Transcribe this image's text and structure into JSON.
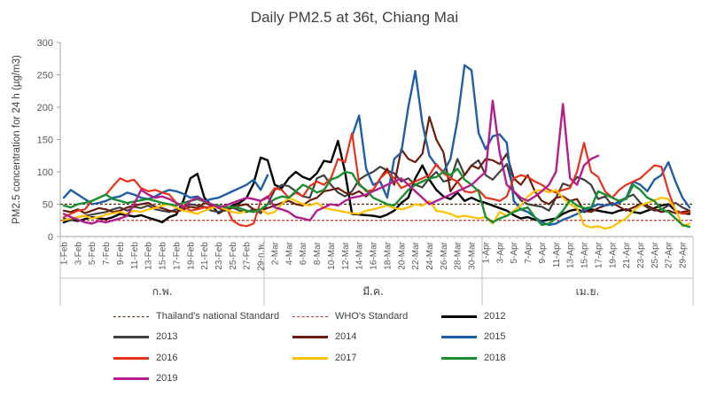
{
  "chart_data": {
    "type": "line",
    "title": "Daily PM2.5 at 36t, Chiang Mai",
    "ylabel": "PM2.5 concentration for 24 h (µg/m3)",
    "xlabel": "",
    "ylim": [
      0,
      300
    ],
    "yticks": [
      0,
      50,
      100,
      150,
      200,
      250,
      300
    ],
    "grid": false,
    "legend_position": "bottom",
    "month_groups": [
      {
        "label": "ก.พ.",
        "start": 0,
        "end": 28
      },
      {
        "label": "มี.ค.",
        "start": 29,
        "end": 59
      },
      {
        "label": "เม.ย.",
        "start": 60,
        "end": 89
      }
    ],
    "x_tick_labels": [
      "1-Feb",
      "3-Feb",
      "5-Feb",
      "7-Feb",
      "9-Feb",
      "11-Feb",
      "13-Feb",
      "15-Feb",
      "17-Feb",
      "19-Feb",
      "21-Feb",
      "23-Feb",
      "25-Feb",
      "27-Feb",
      "29-ก.พ.",
      "2-Mar",
      "4-Mar",
      "6-Mar",
      "8-Mar",
      "10-Mar",
      "12-Mar",
      "14-Mar",
      "16-Mar",
      "18-Mar",
      "20-Mar",
      "22-Mar",
      "24-Mar",
      "26-Mar",
      "28-Mar",
      "30-Mar",
      "1-Apr",
      "3-Apr",
      "5-Apr",
      "7-Apr",
      "9-Apr",
      "11-Apr",
      "13-Apr",
      "15-Apr",
      "17-Apr",
      "19-Apr",
      "21-Apr",
      "23-Apr",
      "25-Apr",
      "27-Apr",
      "29-Apr"
    ],
    "x_tick_days": [
      0,
      2,
      4,
      6,
      8,
      10,
      12,
      14,
      16,
      18,
      20,
      22,
      24,
      26,
      28,
      30,
      32,
      34,
      36,
      38,
      40,
      42,
      44,
      46,
      48,
      50,
      52,
      54,
      56,
      58,
      60,
      62,
      64,
      66,
      68,
      70,
      72,
      74,
      76,
      78,
      80,
      82,
      84,
      86,
      88
    ],
    "standards": [
      {
        "name": "Thailand's national Standard",
        "value": 50,
        "color": "#5a2a0a"
      },
      {
        "name": "WHO's Standard",
        "value": 25,
        "color": "#c0392b"
      }
    ],
    "series": [
      {
        "name": "2012",
        "color": "#000000",
        "width": 2.4,
        "values": [
          22,
          26,
          24,
          27,
          30,
          28,
          27,
          30,
          35,
          33,
          31,
          33,
          29,
          26,
          22,
          30,
          34,
          55,
          90,
          97,
          60,
          48,
          36,
          42,
          48,
          52,
          60,
          82,
          122,
          118,
          80,
          75,
          90,
          100,
          92,
          88,
          98,
          117,
          115,
          148,
          100,
          35,
          34,
          33,
          32,
          30,
          34,
          40,
          52,
          60,
          90,
          110,
          88,
          72,
          62,
          58,
          68,
          55,
          60,
          55,
          52,
          48,
          44,
          40,
          33,
          28,
          30,
          26,
          24,
          26,
          28,
          35,
          40,
          42,
          38,
          42,
          40,
          38,
          36,
          40,
          42,
          38,
          36,
          40,
          44,
          48,
          50,
          40,
          36,
          35
        ]
      },
      {
        "name": "2013",
        "color": "#404040",
        "width": 2.2,
        "values": [
          28,
          25,
          30,
          32,
          34,
          36,
          38,
          42,
          45,
          40,
          46,
          44,
          48,
          42,
          40,
          38,
          42,
          45,
          50,
          48,
          46,
          40,
          38,
          42,
          45,
          40,
          38,
          42,
          36,
          50,
          72,
          80,
          78,
          70,
          62,
          60,
          90,
          95,
          80,
          68,
          62,
          70,
          88,
          95,
          100,
          108,
          102,
          98,
          85,
          90,
          80,
          76,
          90,
          100,
          85,
          88,
          120,
          95,
          110,
          118,
          95,
          88,
          100,
          112,
          70,
          56,
          50,
          48,
          46,
          40,
          60,
          82,
          78,
          92,
          88,
          80,
          58,
          62,
          48,
          55,
          60,
          65,
          52,
          45,
          40,
          42,
          48,
          52,
          45,
          40
        ]
      },
      {
        "name": "2014",
        "color": "#6b1d0d",
        "width": 2.2,
        "values": [
          40,
          38,
          42,
          36,
          40,
          44,
          42,
          38,
          40,
          45,
          48,
          50,
          52,
          46,
          44,
          40,
          38,
          42,
          46,
          44,
          52,
          48,
          44,
          40,
          45,
          48,
          50,
          42,
          40,
          44,
          48,
          52,
          55,
          50,
          48,
          56,
          60,
          70,
          72,
          75,
          68,
          65,
          70,
          62,
          72,
          90,
          105,
          80,
          135,
          120,
          115,
          128,
          185,
          150,
          130,
          70,
          85,
          95,
          110,
          105,
          120,
          118,
          112,
          128,
          90,
          80,
          95,
          70,
          55,
          50,
          60,
          62,
          55,
          58,
          40,
          38,
          44,
          48,
          52,
          46,
          40,
          45,
          50,
          48,
          42,
          38,
          40,
          36,
          38,
          40
        ]
      },
      {
        "name": "2015",
        "color": "#1f5fa8",
        "width": 2.4,
        "values": [
          60,
          72,
          65,
          58,
          50,
          52,
          55,
          60,
          62,
          68,
          65,
          60,
          58,
          62,
          68,
          72,
          70,
          66,
          60,
          62,
          55,
          58,
          60,
          65,
          70,
          75,
          80,
          88,
          72,
          95,
          null,
          null,
          null,
          null,
          null,
          null,
          null,
          null,
          null,
          null,
          null,
          155,
          187,
          105,
          80,
          85,
          60,
          120,
          130,
          200,
          256,
          175,
          125,
          110,
          100,
          120,
          180,
          265,
          257,
          160,
          135,
          155,
          158,
          145,
          55,
          42,
          38,
          30,
          22,
          18,
          20,
          26,
          30,
          35,
          40,
          45,
          50,
          48,
          50,
          52,
          60,
          85,
          80,
          70,
          88,
          95,
          115,
          85,
          60,
          45
        ]
      },
      {
        "name": "2016",
        "color": "#e8311b",
        "width": 2.2,
        "values": [
          30,
          35,
          40,
          42,
          55,
          60,
          65,
          78,
          90,
          85,
          88,
          75,
          70,
          72,
          68,
          65,
          52,
          48,
          40,
          42,
          45,
          46,
          45,
          48,
          25,
          18,
          16,
          20,
          55,
          60,
          75,
          72,
          60,
          68,
          62,
          78,
          85,
          80,
          90,
          120,
          115,
          160,
          82,
          70,
          72,
          90,
          100,
          90,
          75,
          80,
          85,
          90,
          95,
          112,
          98,
          90,
          85,
          70,
          68,
          72,
          60,
          58,
          55,
          62,
          90,
          95,
          92,
          85,
          80,
          72,
          68,
          72,
          75,
          100,
          145,
          100,
          92,
          70,
          60,
          72,
          80,
          85,
          90,
          100,
          110,
          108,
          70,
          40,
          35,
          38
        ]
      },
      {
        "name": "2017",
        "color": "#ffc000",
        "width": 2.2,
        "values": [
          25,
          28,
          30,
          32,
          28,
          30,
          34,
          36,
          38,
          35,
          40,
          38,
          42,
          44,
          48,
          50,
          45,
          40,
          38,
          35,
          40,
          44,
          46,
          42,
          38,
          36,
          40,
          38,
          42,
          35,
          38,
          50,
          60,
          55,
          50,
          48,
          52,
          44,
          42,
          40,
          38,
          36,
          35,
          40,
          42,
          45,
          48,
          44,
          42,
          45,
          50,
          48,
          55,
          40,
          38,
          35,
          30,
          32,
          30,
          28,
          30,
          20,
          38,
          32,
          40,
          48,
          62,
          70,
          72,
          68,
          72,
          60,
          50,
          44,
          18,
          14,
          16,
          12,
          15,
          22,
          28,
          40,
          48,
          52,
          56,
          60,
          58,
          42,
          16,
          20
        ]
      },
      {
        "name": "2018",
        "color": "#1a8f2f",
        "width": 2.4,
        "values": [
          48,
          45,
          50,
          52,
          55,
          60,
          65,
          58,
          55,
          52,
          54,
          56,
          58,
          55,
          52,
          50,
          48,
          52,
          55,
          58,
          54,
          50,
          48,
          45,
          46,
          44,
          40,
          38,
          42,
          50,
          58,
          62,
          60,
          70,
          80,
          75,
          68,
          72,
          88,
          92,
          100,
          98,
          80,
          72,
          60,
          55,
          50,
          48,
          60,
          72,
          80,
          85,
          90,
          92,
          100,
          95,
          105,
          88,
          80,
          70,
          30,
          22,
          28,
          32,
          38,
          42,
          45,
          30,
          18,
          20,
          28,
          40,
          56,
          48,
          44,
          45,
          70,
          65,
          60,
          55,
          58,
          80,
          72,
          60,
          55,
          42,
          38,
          28,
          18,
          15
        ]
      },
      {
        "name": "2019",
        "color": "#b31e8e",
        "width": 2.4,
        "values": [
          35,
          30,
          26,
          22,
          20,
          24,
          22,
          25,
          28,
          32,
          50,
          72,
          65,
          60,
          62,
          58,
          52,
          45,
          55,
          60,
          55,
          50,
          45,
          48,
          52,
          56,
          60,
          58,
          55,
          62,
          45,
          42,
          38,
          30,
          28,
          25,
          40,
          45,
          50,
          48,
          55,
          60,
          62,
          65,
          70,
          75,
          80,
          85,
          90,
          80,
          70,
          60,
          50,
          55,
          60,
          65,
          70,
          75,
          80,
          90,
          100,
          210,
          130,
          80,
          70,
          60,
          55,
          62,
          70,
          80,
          100,
          205,
          90,
          80,
          110,
          120,
          125,
          null,
          null,
          null,
          null,
          null,
          null,
          null,
          null,
          null,
          null,
          null,
          null,
          null
        ]
      }
    ]
  }
}
